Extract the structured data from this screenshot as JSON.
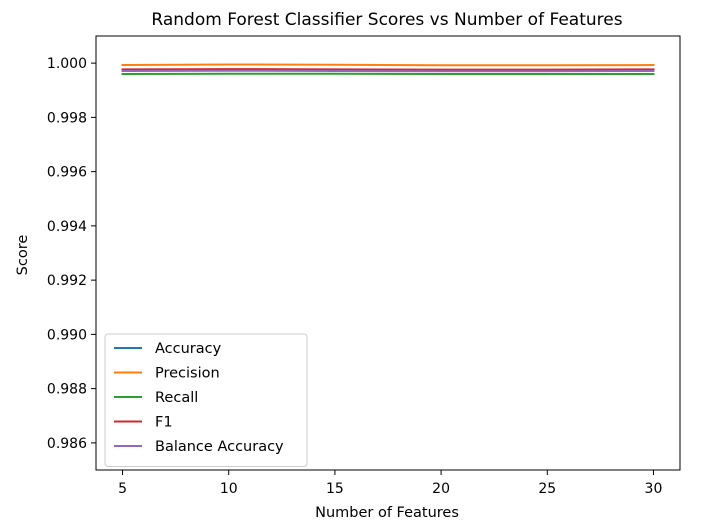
{
  "chart_data": {
    "type": "line",
    "title": "Random Forest Classifier Scores vs Number of Features",
    "xlabel": "Number of Features",
    "ylabel": "Score",
    "x": [
      5,
      10,
      15,
      20,
      25,
      30
    ],
    "xlim": [
      3.75,
      31.25
    ],
    "ylim": [
      0.985,
      1.001
    ],
    "xticks": [
      "5",
      "10",
      "15",
      "20",
      "25",
      "30"
    ],
    "yticks": [
      "0.986",
      "0.988",
      "0.990",
      "0.992",
      "0.994",
      "0.996",
      "0.998",
      "1.000"
    ],
    "grid": false,
    "legend_position": "lower-left",
    "series": [
      {
        "name": "Accuracy",
        "color": "#1f77b4",
        "values": [
          0.99975,
          0.99977,
          0.99976,
          0.99974,
          0.99974,
          0.99975
        ]
      },
      {
        "name": "Precision",
        "color": "#ff7f0e",
        "values": [
          0.99993,
          0.99995,
          0.99994,
          0.99992,
          0.99992,
          0.99993
        ]
      },
      {
        "name": "Recall",
        "color": "#2ca02c",
        "values": [
          0.9996,
          0.99961,
          0.99961,
          0.9996,
          0.9996,
          0.9996
        ]
      },
      {
        "name": "F1",
        "color": "#d62728",
        "values": [
          0.99977,
          0.99978,
          0.99977,
          0.99976,
          0.99976,
          0.99977
        ]
      },
      {
        "name": "Balance Accuracy",
        "color": "#9467bd",
        "values": [
          0.99971,
          0.99972,
          0.99971,
          0.9997,
          0.9997,
          0.99971
        ]
      }
    ]
  }
}
